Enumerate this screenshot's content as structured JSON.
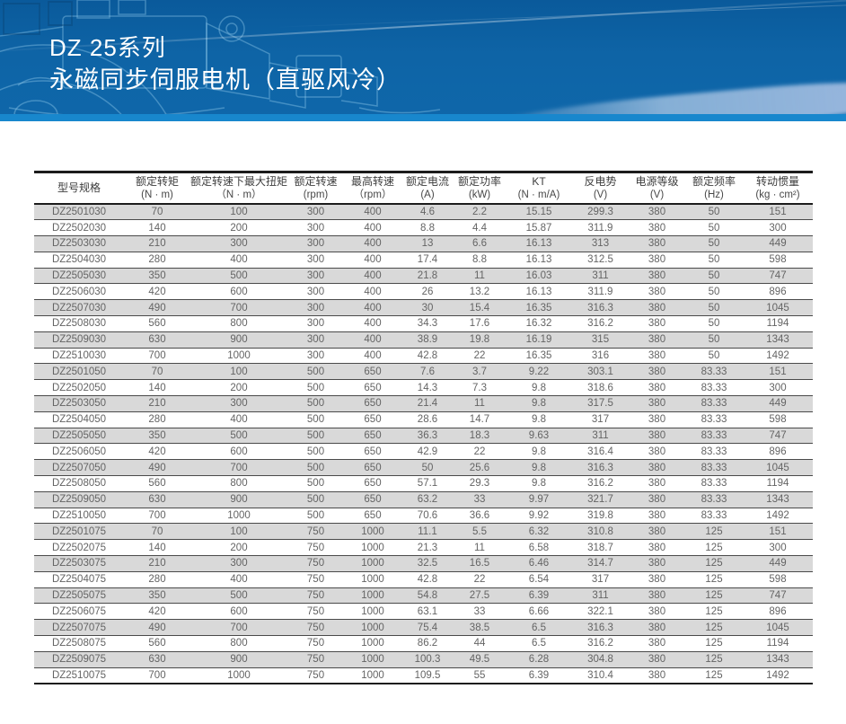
{
  "banner": {
    "title_line1": "DZ 25系列",
    "title_line2": "永磁同步伺服电机（直驱风冷）",
    "bg_color": "#0e64a6",
    "strip_color": "#1887cd"
  },
  "table": {
    "columns": [
      {
        "label": "型号规格",
        "unit": ""
      },
      {
        "label": "额定转矩",
        "unit": "(N · m)"
      },
      {
        "label": "额定转速下最大扭矩",
        "unit": "（N · m）"
      },
      {
        "label": "额定转速",
        "unit": "(rpm)"
      },
      {
        "label": "最高转速",
        "unit": "（rpm）"
      },
      {
        "label": "额定电流",
        "unit": "(A)"
      },
      {
        "label": "额定功率",
        "unit": "(kW)"
      },
      {
        "label": "KT",
        "unit": "(N · m/A)"
      },
      {
        "label": "反电势",
        "unit": "(V)"
      },
      {
        "label": "电源等级",
        "unit": "(V)"
      },
      {
        "label": "额定频率",
        "unit": "(Hz)"
      },
      {
        "label": "转动惯量",
        "unit": "(kg · cm²)"
      }
    ],
    "rows": [
      [
        "DZ2501030",
        "70",
        "100",
        "300",
        "400",
        "4.6",
        "2.2",
        "15.15",
        "299.3",
        "380",
        "50",
        "151"
      ],
      [
        "DZ2502030",
        "140",
        "200",
        "300",
        "400",
        "8.8",
        "4.4",
        "15.87",
        "311.9",
        "380",
        "50",
        "300"
      ],
      [
        "DZ2503030",
        "210",
        "300",
        "300",
        "400",
        "13",
        "6.6",
        "16.13",
        "313",
        "380",
        "50",
        "449"
      ],
      [
        "DZ2504030",
        "280",
        "400",
        "300",
        "400",
        "17.4",
        "8.8",
        "16.13",
        "312.5",
        "380",
        "50",
        "598"
      ],
      [
        "DZ2505030",
        "350",
        "500",
        "300",
        "400",
        "21.8",
        "11",
        "16.03",
        "311",
        "380",
        "50",
        "747"
      ],
      [
        "DZ2506030",
        "420",
        "600",
        "300",
        "400",
        "26",
        "13.2",
        "16.13",
        "311.9",
        "380",
        "50",
        "896"
      ],
      [
        "DZ2507030",
        "490",
        "700",
        "300",
        "400",
        "30",
        "15.4",
        "16.35",
        "316.3",
        "380",
        "50",
        "1045"
      ],
      [
        "DZ2508030",
        "560",
        "800",
        "300",
        "400",
        "34.3",
        "17.6",
        "16.32",
        "316.2",
        "380",
        "50",
        "1194"
      ],
      [
        "DZ2509030",
        "630",
        "900",
        "300",
        "400",
        "38.9",
        "19.8",
        "16.19",
        "315",
        "380",
        "50",
        "1343"
      ],
      [
        "DZ2510030",
        "700",
        "1000",
        "300",
        "400",
        "42.8",
        "22",
        "16.35",
        "316",
        "380",
        "50",
        "1492"
      ],
      [
        "DZ2501050",
        "70",
        "100",
        "500",
        "650",
        "7.6",
        "3.7",
        "9.22",
        "303.1",
        "380",
        "83.33",
        "151"
      ],
      [
        "DZ2502050",
        "140",
        "200",
        "500",
        "650",
        "14.3",
        "7.3",
        "9.8",
        "318.6",
        "380",
        "83.33",
        "300"
      ],
      [
        "DZ2503050",
        "210",
        "300",
        "500",
        "650",
        "21.4",
        "11",
        "9.8",
        "317.5",
        "380",
        "83.33",
        "449"
      ],
      [
        "DZ2504050",
        "280",
        "400",
        "500",
        "650",
        "28.6",
        "14.7",
        "9.8",
        "317",
        "380",
        "83.33",
        "598"
      ],
      [
        "DZ2505050",
        "350",
        "500",
        "500",
        "650",
        "36.3",
        "18.3",
        "9.63",
        "311",
        "380",
        "83.33",
        "747"
      ],
      [
        "DZ2506050",
        "420",
        "600",
        "500",
        "650",
        "42.9",
        "22",
        "9.8",
        "316.4",
        "380",
        "83.33",
        "896"
      ],
      [
        "DZ2507050",
        "490",
        "700",
        "500",
        "650",
        "50",
        "25.6",
        "9.8",
        "316.3",
        "380",
        "83.33",
        "1045"
      ],
      [
        "DZ2508050",
        "560",
        "800",
        "500",
        "650",
        "57.1",
        "29.3",
        "9.8",
        "316.2",
        "380",
        "83.33",
        "1194"
      ],
      [
        "DZ2509050",
        "630",
        "900",
        "500",
        "650",
        "63.2",
        "33",
        "9.97",
        "321.7",
        "380",
        "83.33",
        "1343"
      ],
      [
        "DZ2510050",
        "700",
        "1000",
        "500",
        "650",
        "70.6",
        "36.6",
        "9.92",
        "319.8",
        "380",
        "83.33",
        "1492"
      ],
      [
        "DZ2501075",
        "70",
        "100",
        "750",
        "1000",
        "11.1",
        "5.5",
        "6.32",
        "310.8",
        "380",
        "125",
        "151"
      ],
      [
        "DZ2502075",
        "140",
        "200",
        "750",
        "1000",
        "21.3",
        "11",
        "6.58",
        "318.7",
        "380",
        "125",
        "300"
      ],
      [
        "DZ2503075",
        "210",
        "300",
        "750",
        "1000",
        "32.5",
        "16.5",
        "6.46",
        "314.7",
        "380",
        "125",
        "449"
      ],
      [
        "DZ2504075",
        "280",
        "400",
        "750",
        "1000",
        "42.8",
        "22",
        "6.54",
        "317",
        "380",
        "125",
        "598"
      ],
      [
        "DZ2505075",
        "350",
        "500",
        "750",
        "1000",
        "54.8",
        "27.5",
        "6.39",
        "311",
        "380",
        "125",
        "747"
      ],
      [
        "DZ2506075",
        "420",
        "600",
        "750",
        "1000",
        "63.1",
        "33",
        "6.66",
        "322.1",
        "380",
        "125",
        "896"
      ],
      [
        "DZ2507075",
        "490",
        "700",
        "750",
        "1000",
        "75.4",
        "38.5",
        "6.5",
        "316.3",
        "380",
        "125",
        "1045"
      ],
      [
        "DZ2508075",
        "560",
        "800",
        "750",
        "1000",
        "86.2",
        "44",
        "6.5",
        "316.2",
        "380",
        "125",
        "1194"
      ],
      [
        "DZ2509075",
        "630",
        "900",
        "750",
        "1000",
        "100.3",
        "49.5",
        "6.28",
        "304.8",
        "380",
        "125",
        "1343"
      ],
      [
        "DZ2510075",
        "700",
        "1000",
        "750",
        "1000",
        "109.5",
        "55",
        "6.39",
        "310.4",
        "380",
        "125",
        "1492"
      ]
    ]
  }
}
